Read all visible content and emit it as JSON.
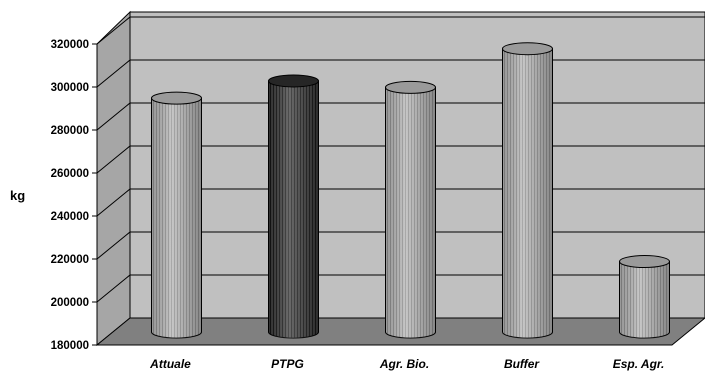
{
  "chart_data": {
    "type": "bar",
    "style": "3d-cylinder",
    "categories": [
      "Attuale",
      "PTPG",
      "Agr. Bio.",
      "Buffer",
      "Esp. Agr."
    ],
    "values": [
      289000,
      297000,
      294000,
      312000,
      213000
    ],
    "ylabel": "kg",
    "ylim": [
      180000,
      320000
    ],
    "yticks": [
      {
        "value": 180000,
        "label": "180000"
      },
      {
        "value": 200000,
        "label": "200000"
      },
      {
        "value": 220000,
        "label": "220000"
      },
      {
        "value": 240000,
        "label": "240000"
      },
      {
        "value": 260000,
        "label": "260000"
      },
      {
        "value": 280000,
        "label": "280000"
      },
      {
        "value": 300000,
        "label": "300000"
      },
      {
        "value": 320000,
        "label": "320000"
      }
    ],
    "grid": true,
    "legend": "none",
    "colors": {
      "wall": "#c0c0c0",
      "floor": "#808080",
      "bar_light": "#b2b2b2",
      "bar_highlight": "#2e2e2e",
      "highlight_category": "PTPG"
    }
  }
}
